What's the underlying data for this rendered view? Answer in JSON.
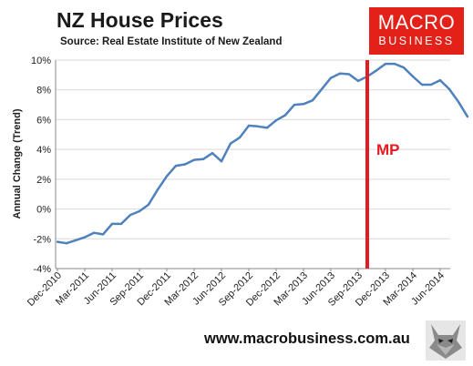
{
  "header": {
    "title": "NZ House Prices",
    "subtitle": "Source: Real Estate Institute of New Zealand"
  },
  "logo": {
    "line1": "MACRO",
    "line2": "BUSINESS"
  },
  "footer": {
    "url": "www.macrobusiness.com.au"
  },
  "colors": {
    "line": "#4f81bd",
    "marker": "#e31b23",
    "logo_bg": "#e32119",
    "grid": "#d9d9d9"
  },
  "chart_data": {
    "type": "line",
    "title": "NZ House Prices",
    "ylabel": "Annual Change (Trend)",
    "ylim": [
      -4,
      10
    ],
    "ytick_labels": [
      "-4%",
      "-2%",
      "0%",
      "2%",
      "4%",
      "6%",
      "8%",
      "10%"
    ],
    "ytick_values": [
      -4,
      -2,
      0,
      2,
      4,
      6,
      8,
      10
    ],
    "xtick_labels": [
      "Dec-2010",
      "Mar-2011",
      "Jun-2011",
      "Sep-2011",
      "Dec-2011",
      "Mar-2012",
      "Jun-2012",
      "Sep-2012",
      "Dec-2012",
      "Mar-2013",
      "Jun-2013",
      "Sep-2013",
      "Dec-2013",
      "Mar-2014",
      "Jun-2014"
    ],
    "grid": "horizontal",
    "series": [
      {
        "values": [
          -2.2,
          -2.3,
          -2.1,
          -1.9,
          -1.6,
          -1.7,
          -1.0,
          -1.0,
          -0.4,
          -0.15,
          0.3,
          1.3,
          2.2,
          2.9,
          3.0,
          3.3,
          3.35,
          3.75,
          3.2,
          4.4,
          4.8,
          5.6,
          5.55,
          5.45,
          5.95,
          6.3,
          7.0,
          7.05,
          7.3,
          8.05,
          8.8,
          9.1,
          9.05,
          8.6,
          8.9,
          9.3,
          9.75,
          9.75,
          9.5,
          8.9,
          8.35,
          8.35,
          8.65,
          8.05,
          7.2,
          6.2
        ]
      }
    ],
    "annotation": {
      "label": "MP",
      "x_category": "Sep-2013"
    }
  }
}
